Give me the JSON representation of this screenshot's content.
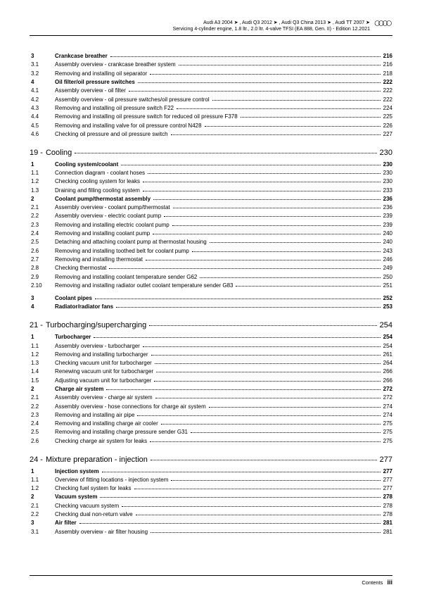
{
  "header": {
    "line1": "Audi A3 2004 ➤ , Audi Q3 2012 ➤ , Audi Q3 China 2013 ➤ , Audi TT 2007 ➤",
    "line2": "Servicing 4-cylinder engine, 1.8 ltr., 2.0 ltr. 4-valve TFSI (EA 888, Gen. II) - Edition 12.2021"
  },
  "blocks": [
    {
      "type": "gap"
    },
    {
      "type": "row",
      "num": "3",
      "title": "Crankcase breather",
      "page": "216",
      "bold": true
    },
    {
      "type": "row",
      "num": "3.1",
      "title": "Assembly overview - crankcase breather system",
      "page": "216"
    },
    {
      "type": "row",
      "num": "3.2",
      "title": "Removing and installing oil separator",
      "page": "218"
    },
    {
      "type": "row",
      "num": "4",
      "title": "Oil filter/oil pressure switches",
      "page": "222",
      "bold": true
    },
    {
      "type": "row",
      "num": "4.1",
      "title": "Assembly overview - oil filter",
      "page": "222"
    },
    {
      "type": "row",
      "num": "4.2",
      "title": "Assembly overview - oil pressure switches/oil pressure control",
      "page": "222"
    },
    {
      "type": "row",
      "num": "4.3",
      "title": "Removing and installing oil pressure switch F22",
      "page": "224"
    },
    {
      "type": "row",
      "num": "4.4",
      "title": "Removing and installing oil pressure switch for reduced oil pressure F378",
      "page": "225"
    },
    {
      "type": "row",
      "num": "4.5",
      "title": "Removing and installing valve for oil pressure control N428",
      "page": "226"
    },
    {
      "type": "row",
      "num": "4.6",
      "title": "Checking oil pressure and oil pressure switch",
      "page": "227"
    },
    {
      "type": "chapter",
      "num": "19 -",
      "title": "Cooling",
      "page": "230"
    },
    {
      "type": "row",
      "num": "1",
      "title": "Cooling system/coolant",
      "page": "230",
      "bold": true
    },
    {
      "type": "row",
      "num": "1.1",
      "title": "Connection diagram - coolant hoses",
      "page": "230"
    },
    {
      "type": "row",
      "num": "1.2",
      "title": "Checking cooling system for leaks",
      "page": "230"
    },
    {
      "type": "row",
      "num": "1.3",
      "title": "Draining and filling cooling system",
      "page": "233"
    },
    {
      "type": "row",
      "num": "2",
      "title": "Coolant pump/thermostat assembly",
      "page": "236",
      "bold": true
    },
    {
      "type": "row",
      "num": "2.1",
      "title": "Assembly overview - coolant pump/thermostat",
      "page": "236"
    },
    {
      "type": "row",
      "num": "2.2",
      "title": "Assembly overview - electric coolant pump",
      "page": "239"
    },
    {
      "type": "row",
      "num": "2.3",
      "title": "Removing and installing electric coolant pump",
      "page": "239"
    },
    {
      "type": "row",
      "num": "2.4",
      "title": "Removing and installing coolant pump",
      "page": "240"
    },
    {
      "type": "row",
      "num": "2.5",
      "title": "Detaching and attaching coolant pump at thermostat housing",
      "page": "240"
    },
    {
      "type": "row",
      "num": "2.6",
      "title": "Removing and installing toothed belt for coolant pump",
      "page": "243"
    },
    {
      "type": "row",
      "num": "2.7",
      "title": "Removing and installing thermostat",
      "page": "246"
    },
    {
      "type": "row",
      "num": "2.8",
      "title": "Checking thermostat",
      "page": "249"
    },
    {
      "type": "row",
      "num": "2.9",
      "title": "Removing and installing coolant temperature sender G62",
      "page": "250"
    },
    {
      "type": "row",
      "num": "2.10",
      "title": "Removing and installing radiator outlet coolant temperature sender G83",
      "page": "251"
    },
    {
      "type": "gap"
    },
    {
      "type": "row",
      "num": "3",
      "title": "Coolant pipes",
      "page": "252",
      "bold": true
    },
    {
      "type": "row",
      "num": "4",
      "title": "Radiator/radiator fans",
      "page": "253",
      "bold": true
    },
    {
      "type": "chapter",
      "num": "21 -",
      "title": "Turbocharging/supercharging",
      "page": "254"
    },
    {
      "type": "row",
      "num": "1",
      "title": "Turbocharger",
      "page": "254",
      "bold": true
    },
    {
      "type": "row",
      "num": "1.1",
      "title": "Assembly overview - turbocharger",
      "page": "254"
    },
    {
      "type": "row",
      "num": "1.2",
      "title": "Removing and installing turbocharger",
      "page": "261"
    },
    {
      "type": "row",
      "num": "1.3",
      "title": "Checking vacuum unit for turbocharger",
      "page": "264"
    },
    {
      "type": "row",
      "num": "1.4",
      "title": "Renewing vacuum unit for turbocharger",
      "page": "266"
    },
    {
      "type": "row",
      "num": "1.5",
      "title": "Adjusting vacuum unit for turbocharger",
      "page": "266"
    },
    {
      "type": "row",
      "num": "2",
      "title": "Charge air system",
      "page": "272",
      "bold": true
    },
    {
      "type": "row",
      "num": "2.1",
      "title": "Assembly overview - charge air system",
      "page": "272"
    },
    {
      "type": "row",
      "num": "2.2",
      "title": "Assembly overview - hose connections for charge air system",
      "page": "274"
    },
    {
      "type": "row",
      "num": "2.3",
      "title": "Removing and installing air pipe",
      "page": "274"
    },
    {
      "type": "row",
      "num": "2.4",
      "title": "Removing and installing charge air cooler",
      "page": "275"
    },
    {
      "type": "row",
      "num": "2.5",
      "title": "Removing and installing charge pressure sender G31",
      "page": "275"
    },
    {
      "type": "row",
      "num": "2.6",
      "title": "Checking charge air system for leaks",
      "page": "275"
    },
    {
      "type": "chapter",
      "num": "24 -",
      "title": "Mixture preparation - injection",
      "page": "277"
    },
    {
      "type": "row",
      "num": "1",
      "title": "Injection system",
      "page": "277",
      "bold": true
    },
    {
      "type": "row",
      "num": "1.1",
      "title": "Overview of fitting locations - injection system",
      "page": "277"
    },
    {
      "type": "row",
      "num": "1.2",
      "title": "Checking fuel system for leaks",
      "page": "277"
    },
    {
      "type": "row",
      "num": "2",
      "title": "Vacuum system",
      "page": "278",
      "bold": true
    },
    {
      "type": "row",
      "num": "2.1",
      "title": "Checking vacuum system",
      "page": "278"
    },
    {
      "type": "row",
      "num": "2.2",
      "title": "Checking dual non-return valve",
      "page": "278"
    },
    {
      "type": "row",
      "num": "3",
      "title": "Air filter",
      "page": "281",
      "bold": true
    },
    {
      "type": "row",
      "num": "3.1",
      "title": "Assembly overview - air filter housing",
      "page": "281"
    }
  ],
  "footer": {
    "label": "Contents",
    "pagenum": "iii"
  }
}
